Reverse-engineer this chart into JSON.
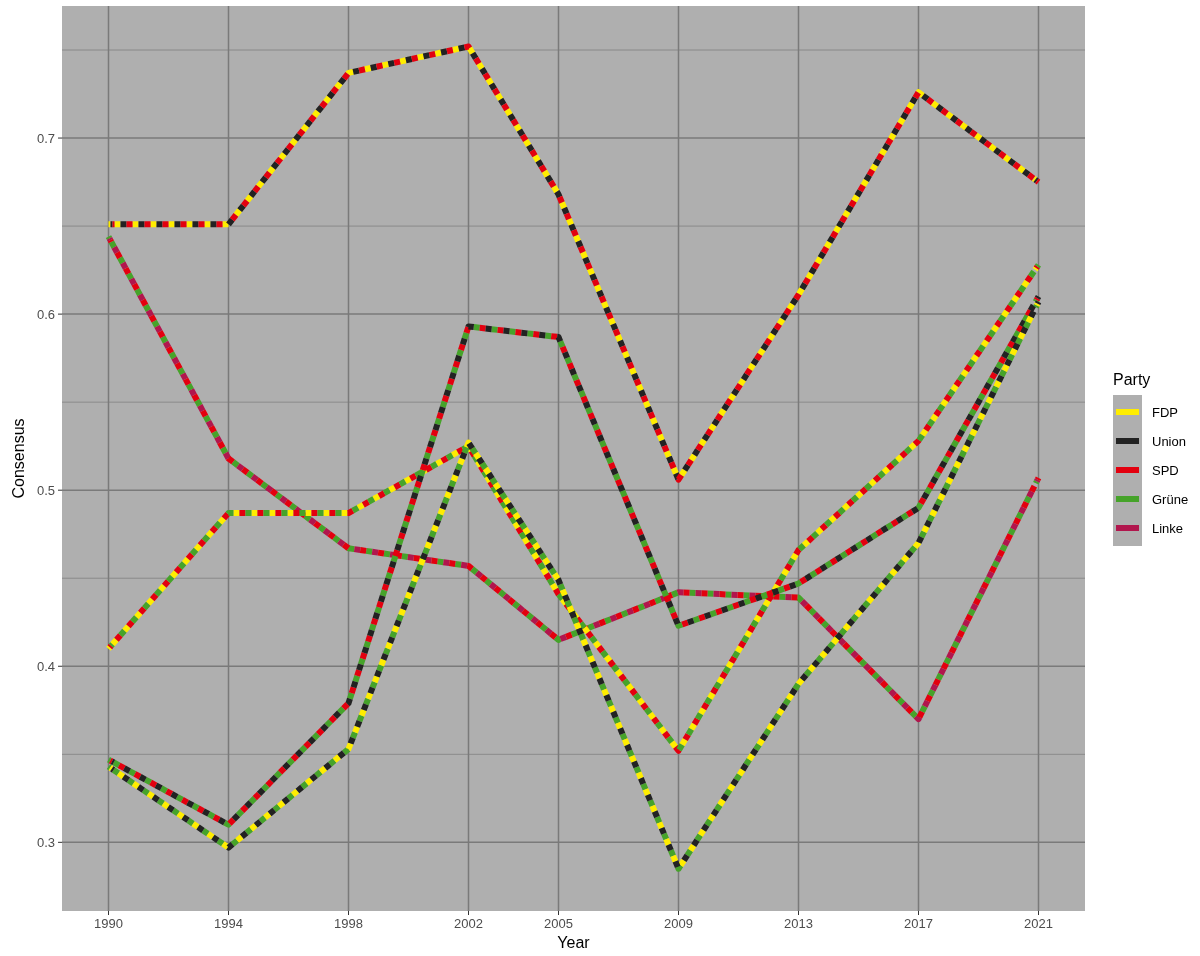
{
  "chart_data": {
    "type": "line",
    "xlabel": "Year",
    "ylabel": "Consensus",
    "legend_title": "Party",
    "legend": "right",
    "grid": true,
    "line_style": "dashed",
    "x": [
      1990,
      1994,
      1998,
      2002,
      2005,
      2009,
      2013,
      2017,
      2021
    ],
    "xlim": [
      1988.45,
      2022.55
    ],
    "xticks": [
      1990,
      1994,
      1998,
      2002,
      2005,
      2009,
      2013,
      2017,
      2021
    ],
    "ylim": [
      0.261,
      0.775
    ],
    "yticks": [
      0.3,
      0.4,
      0.5,
      0.6,
      0.7
    ],
    "series": [
      {
        "name": "FDP",
        "color": "#ffed00",
        "values": [
          0.651,
          0.651,
          0.737,
          0.752,
          0.668,
          0.506,
          0.611,
          0.726,
          0.675
        ]
      },
      {
        "name": "Union",
        "color": "#222222",
        "values": [
          0.651,
          0.651,
          0.737,
          0.752,
          0.668,
          0.506,
          0.611,
          0.726,
          0.675
        ]
      },
      {
        "name": "SPD",
        "color": "#e3000f",
        "values": [
          0.651,
          0.651,
          0.737,
          0.752,
          0.668,
          0.506,
          0.611,
          0.726,
          0.675
        ]
      },
      {
        "name": "Grüne",
        "color": "#46a32a",
        "values": [
          0.644,
          0.518,
          0.467,
          0.457,
          0.415,
          0.442,
          0.439,
          0.37,
          0.507
        ]
      },
      {
        "name": "Linke",
        "color": "#b1164d",
        "values": [
          0.644,
          0.518,
          0.467,
          0.457,
          0.415,
          0.442,
          0.439,
          0.37,
          0.507
        ]
      },
      {
        "color": "#e3000f",
        "values": [
          0.644,
          0.518,
          0.467,
          0.457,
          0.415,
          0.442,
          0.439,
          0.37,
          0.507
        ]
      },
      {
        "color": "#ffed00",
        "values": [
          0.41,
          0.487,
          0.487,
          0.525,
          0.441,
          0.352,
          0.466,
          0.528,
          0.628
        ]
      },
      {
        "color": "#e3000f",
        "values": [
          0.41,
          0.487,
          0.487,
          0.525,
          0.441,
          0.352,
          0.466,
          0.528,
          0.628
        ]
      },
      {
        "color": "#46a32a",
        "values": [
          0.41,
          0.487,
          0.487,
          0.525,
          0.441,
          0.352,
          0.466,
          0.528,
          0.628
        ]
      },
      {
        "color": "#46a32a",
        "values": [
          0.347,
          0.31,
          0.379,
          0.593,
          0.587,
          0.423,
          0.447,
          0.49,
          0.61
        ]
      },
      {
        "color": "#e3000f",
        "values": [
          0.347,
          0.31,
          0.379,
          0.593,
          0.587,
          0.423,
          0.447,
          0.49,
          0.61
        ]
      },
      {
        "color": "#222222",
        "values": [
          0.347,
          0.31,
          0.379,
          0.593,
          0.587,
          0.423,
          0.447,
          0.49,
          0.61
        ]
      },
      {
        "color": "#46a32a",
        "values": [
          0.343,
          0.297,
          0.353,
          0.527,
          0.449,
          0.285,
          0.39,
          0.47,
          0.607
        ]
      },
      {
        "color": "#ffed00",
        "values": [
          0.343,
          0.297,
          0.353,
          0.527,
          0.449,
          0.285,
          0.39,
          0.47,
          0.607
        ]
      },
      {
        "color": "#222222",
        "values": [
          0.343,
          0.297,
          0.353,
          0.527,
          0.449,
          0.285,
          0.39,
          0.47,
          0.607
        ]
      }
    ]
  }
}
